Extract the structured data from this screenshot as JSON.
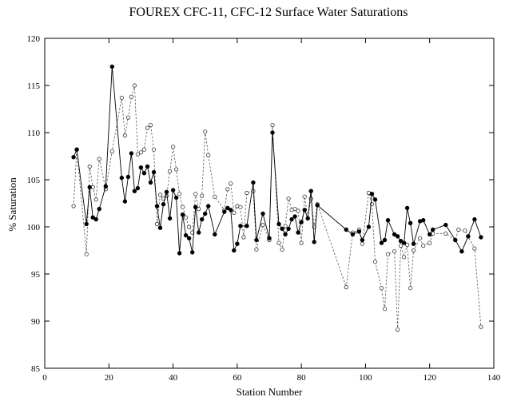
{
  "chart_data": {
    "type": "line",
    "title": "FOUREX CFC-11, CFC-12 Surface Water Saturations",
    "xlabel": "Station Number",
    "ylabel": "% Saturation",
    "xlim": [
      0,
      140
    ],
    "ylim": [
      85,
      120
    ],
    "xticks": [
      0,
      20,
      40,
      60,
      80,
      100,
      120,
      140
    ],
    "yticks": [
      85,
      90,
      95,
      100,
      105,
      110,
      115,
      120
    ],
    "grid": false,
    "legend": "none",
    "series": [
      {
        "marker": "filled-circle",
        "line": "solid",
        "color": "#000000",
        "points": [
          [
            9,
            107.4
          ],
          [
            10,
            108.2
          ],
          [
            13,
            100.3
          ],
          [
            14,
            104.2
          ],
          [
            15,
            101.0
          ],
          [
            16,
            100.8
          ],
          [
            17,
            101.9
          ],
          [
            19,
            104.3
          ],
          [
            21,
            117.0
          ],
          [
            24,
            105.2
          ],
          [
            25,
            102.7
          ],
          [
            26,
            105.3
          ],
          [
            27,
            107.8
          ],
          [
            28,
            103.8
          ],
          [
            29,
            104.1
          ],
          [
            30,
            106.3
          ],
          [
            31,
            105.7
          ],
          [
            32,
            106.4
          ],
          [
            33,
            104.7
          ],
          [
            34,
            105.8
          ],
          [
            35,
            102.2
          ],
          [
            36,
            99.9
          ],
          [
            37,
            102.4
          ],
          [
            38,
            103.7
          ],
          [
            39,
            100.9
          ],
          [
            40,
            103.9
          ],
          [
            41,
            103.1
          ],
          [
            42,
            97.2
          ],
          [
            43,
            101.3
          ],
          [
            44,
            99.1
          ],
          [
            45,
            98.8
          ],
          [
            46,
            97.3
          ],
          [
            47,
            102.1
          ],
          [
            48,
            99.4
          ],
          [
            49,
            100.8
          ],
          [
            50,
            101.4
          ],
          [
            51,
            102.2
          ],
          [
            53,
            99.2
          ],
          [
            56,
            101.6
          ],
          [
            57,
            102.0
          ],
          [
            58,
            101.8
          ],
          [
            59,
            97.5
          ],
          [
            60,
            98.2
          ],
          [
            61,
            100.1
          ],
          [
            63,
            100.1
          ],
          [
            65,
            104.7
          ],
          [
            66,
            98.6
          ],
          [
            68,
            101.4
          ],
          [
            70,
            98.8
          ],
          [
            71,
            110.0
          ],
          [
            73,
            100.3
          ],
          [
            74,
            99.8
          ],
          [
            75,
            99.2
          ],
          [
            76,
            99.8
          ],
          [
            77,
            100.8
          ],
          [
            78,
            101.1
          ],
          [
            79,
            99.4
          ],
          [
            80,
            100.5
          ],
          [
            81,
            101.8
          ],
          [
            82,
            100.9
          ],
          [
            83,
            103.8
          ],
          [
            84,
            98.4
          ],
          [
            85,
            102.3
          ],
          [
            94,
            99.7
          ],
          [
            96,
            99.2
          ],
          [
            98,
            99.5
          ],
          [
            99,
            98.6
          ],
          [
            101,
            100.0
          ],
          [
            102,
            103.5
          ],
          [
            103,
            102.9
          ],
          [
            105,
            98.3
          ],
          [
            106,
            98.6
          ],
          [
            107,
            100.7
          ],
          [
            109,
            99.2
          ],
          [
            110,
            99.0
          ],
          [
            111,
            98.5
          ],
          [
            112,
            98.3
          ],
          [
            113,
            102.0
          ],
          [
            114,
            100.4
          ],
          [
            115,
            98.2
          ],
          [
            117,
            100.6
          ],
          [
            118,
            100.7
          ],
          [
            120,
            99.2
          ],
          [
            121,
            99.7
          ],
          [
            125,
            100.2
          ],
          [
            128,
            98.6
          ],
          [
            130,
            97.4
          ],
          [
            132,
            99.0
          ],
          [
            134,
            100.8
          ],
          [
            136,
            98.9
          ]
        ]
      },
      {
        "marker": "open-circle",
        "line": "dashed",
        "color": "#555555",
        "points": [
          [
            9,
            102.2
          ],
          [
            10,
            108.2
          ],
          [
            13,
            97.1
          ],
          [
            14,
            106.4
          ],
          [
            15,
            104.2
          ],
          [
            16,
            102.9
          ],
          [
            17,
            107.2
          ],
          [
            19,
            104.0
          ],
          [
            21,
            108.0
          ],
          [
            24,
            113.7
          ],
          [
            25,
            109.7
          ],
          [
            26,
            111.6
          ],
          [
            27,
            113.8
          ],
          [
            28,
            115.0
          ],
          [
            29,
            107.7
          ],
          [
            30,
            107.9
          ],
          [
            31,
            108.2
          ],
          [
            32,
            110.5
          ],
          [
            33,
            110.8
          ],
          [
            34,
            108.2
          ],
          [
            35,
            100.3
          ],
          [
            36,
            103.4
          ],
          [
            37,
            103.0
          ],
          [
            38,
            103.3
          ],
          [
            39,
            105.9
          ],
          [
            40,
            108.5
          ],
          [
            41,
            106.1
          ],
          [
            42,
            103.5
          ],
          [
            43,
            102.1
          ],
          [
            44,
            101.0
          ],
          [
            45,
            100.0
          ],
          [
            46,
            99.4
          ],
          [
            47,
            103.5
          ],
          [
            48,
            101.9
          ],
          [
            49,
            103.3
          ],
          [
            50,
            110.1
          ],
          [
            51,
            107.6
          ],
          [
            53,
            103.2
          ],
          [
            56,
            101.8
          ],
          [
            57,
            104.0
          ],
          [
            58,
            104.6
          ],
          [
            59,
            101.5
          ],
          [
            60,
            102.2
          ],
          [
            61,
            102.1
          ],
          [
            62,
            98.9
          ],
          [
            63,
            103.6
          ],
          [
            65,
            103.8
          ],
          [
            66,
            97.6
          ],
          [
            68,
            100.2
          ],
          [
            70,
            98.6
          ],
          [
            71,
            110.8
          ],
          [
            73,
            98.3
          ],
          [
            74,
            97.6
          ],
          [
            75,
            100.1
          ],
          [
            76,
            103.0
          ],
          [
            77,
            101.8
          ],
          [
            78,
            101.9
          ],
          [
            79,
            101.7
          ],
          [
            80,
            98.3
          ],
          [
            81,
            103.2
          ],
          [
            82,
            100.9
          ],
          [
            83,
            103.0
          ],
          [
            84,
            100.0
          ],
          [
            85,
            102.4
          ],
          [
            94,
            93.6
          ],
          [
            96,
            99.4
          ],
          [
            98,
            99.7
          ],
          [
            99,
            98.2
          ],
          [
            101,
            103.6
          ],
          [
            102,
            102.4
          ],
          [
            103,
            96.3
          ],
          [
            105,
            93.5
          ],
          [
            106,
            91.3
          ],
          [
            107,
            97.1
          ],
          [
            109,
            97.4
          ],
          [
            110,
            89.1
          ],
          [
            111,
            98.0
          ],
          [
            112,
            96.8
          ],
          [
            113,
            98.1
          ],
          [
            114,
            93.5
          ],
          [
            115,
            97.5
          ],
          [
            117,
            98.8
          ],
          [
            118,
            98.0
          ],
          [
            120,
            98.3
          ],
          [
            121,
            99.3
          ],
          [
            125,
            99.3
          ],
          [
            128,
            98.6
          ],
          [
            129,
            99.7
          ],
          [
            131,
            99.6
          ],
          [
            134,
            97.7
          ],
          [
            136,
            89.4
          ]
        ]
      }
    ]
  }
}
